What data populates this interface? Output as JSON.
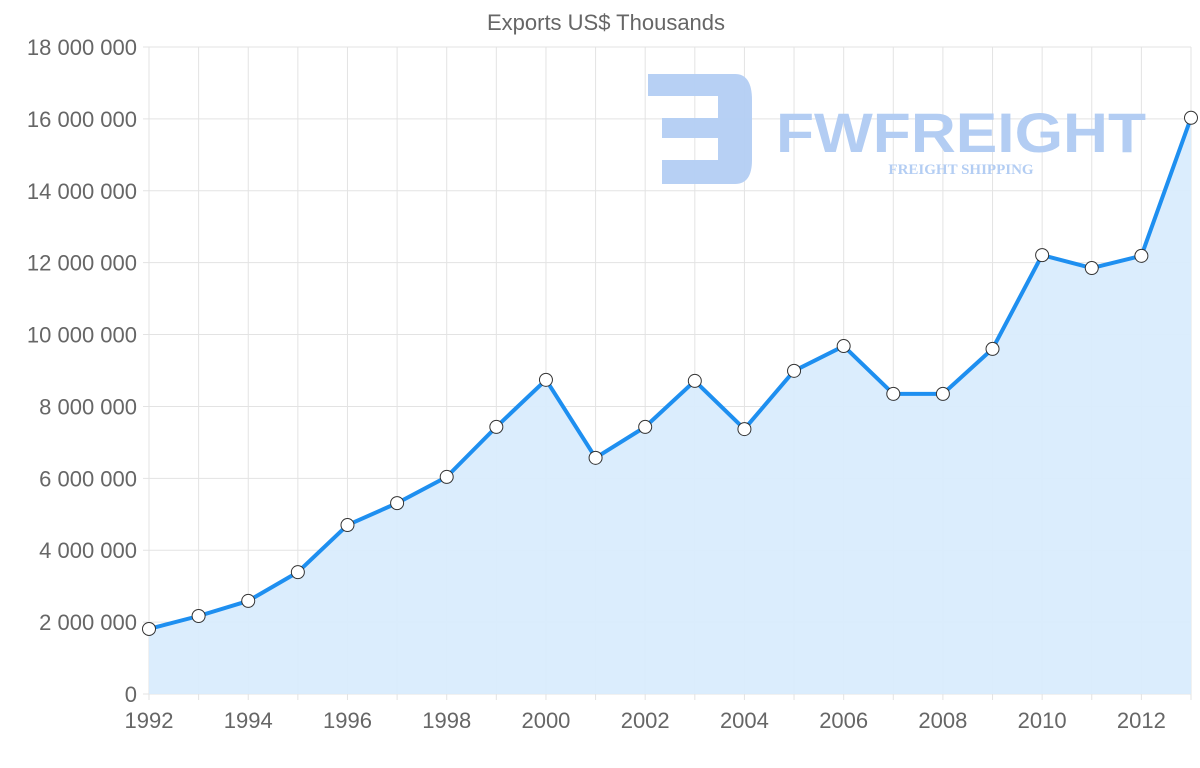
{
  "chart_data": {
    "type": "area",
    "title": "Exports US$ Thousands",
    "xlabel": "",
    "ylabel": "",
    "x": [
      1992,
      1993,
      1994,
      1995,
      1996,
      1997,
      1998,
      1999,
      2000,
      2001,
      2002,
      2003,
      2004,
      2005,
      2006,
      2007,
      2008,
      2009,
      2010,
      2011,
      2012,
      2013
    ],
    "series": [
      {
        "name": "Exports US$ Thousands",
        "values": [
          1810000,
          2170000,
          2590000,
          3390000,
          4700000,
          5310000,
          6040000,
          7430000,
          8740000,
          6570000,
          7430000,
          8710000,
          7370000,
          8990000,
          9680000,
          8350000,
          8350000,
          9600000,
          12210000,
          11850000,
          12190000,
          16030000
        ]
      }
    ],
    "ylim": [
      0,
      18000000
    ],
    "xlim": [
      1992,
      2013
    ],
    "y_ticks": [
      0,
      2000000,
      4000000,
      6000000,
      8000000,
      10000000,
      12000000,
      14000000,
      16000000,
      18000000
    ],
    "y_tick_labels": [
      "0",
      "2 000 000",
      "4 000 000",
      "6 000 000",
      "8 000 000",
      "10 000 000",
      "12 000 000",
      "14 000 000",
      "16 000 000",
      "18 000 000"
    ],
    "x_ticks": [
      1992,
      1994,
      1996,
      1998,
      2000,
      2002,
      2004,
      2006,
      2008,
      2010,
      2012
    ],
    "x_tick_labels": [
      "1992",
      "1994",
      "1996",
      "1998",
      "2000",
      "2002",
      "2004",
      "2006",
      "2008",
      "2010",
      "2012"
    ],
    "grid": true,
    "legend": "none",
    "colors": {
      "line": "#1e8ff0",
      "fill": "#d9ecfd",
      "grid": "#e3e3e3",
      "text": "#666666"
    }
  },
  "watermark": {
    "brand": "FWFREIGHT",
    "tagline": "FREIGHT SHIPPING",
    "color": "#b3cdf3"
  }
}
